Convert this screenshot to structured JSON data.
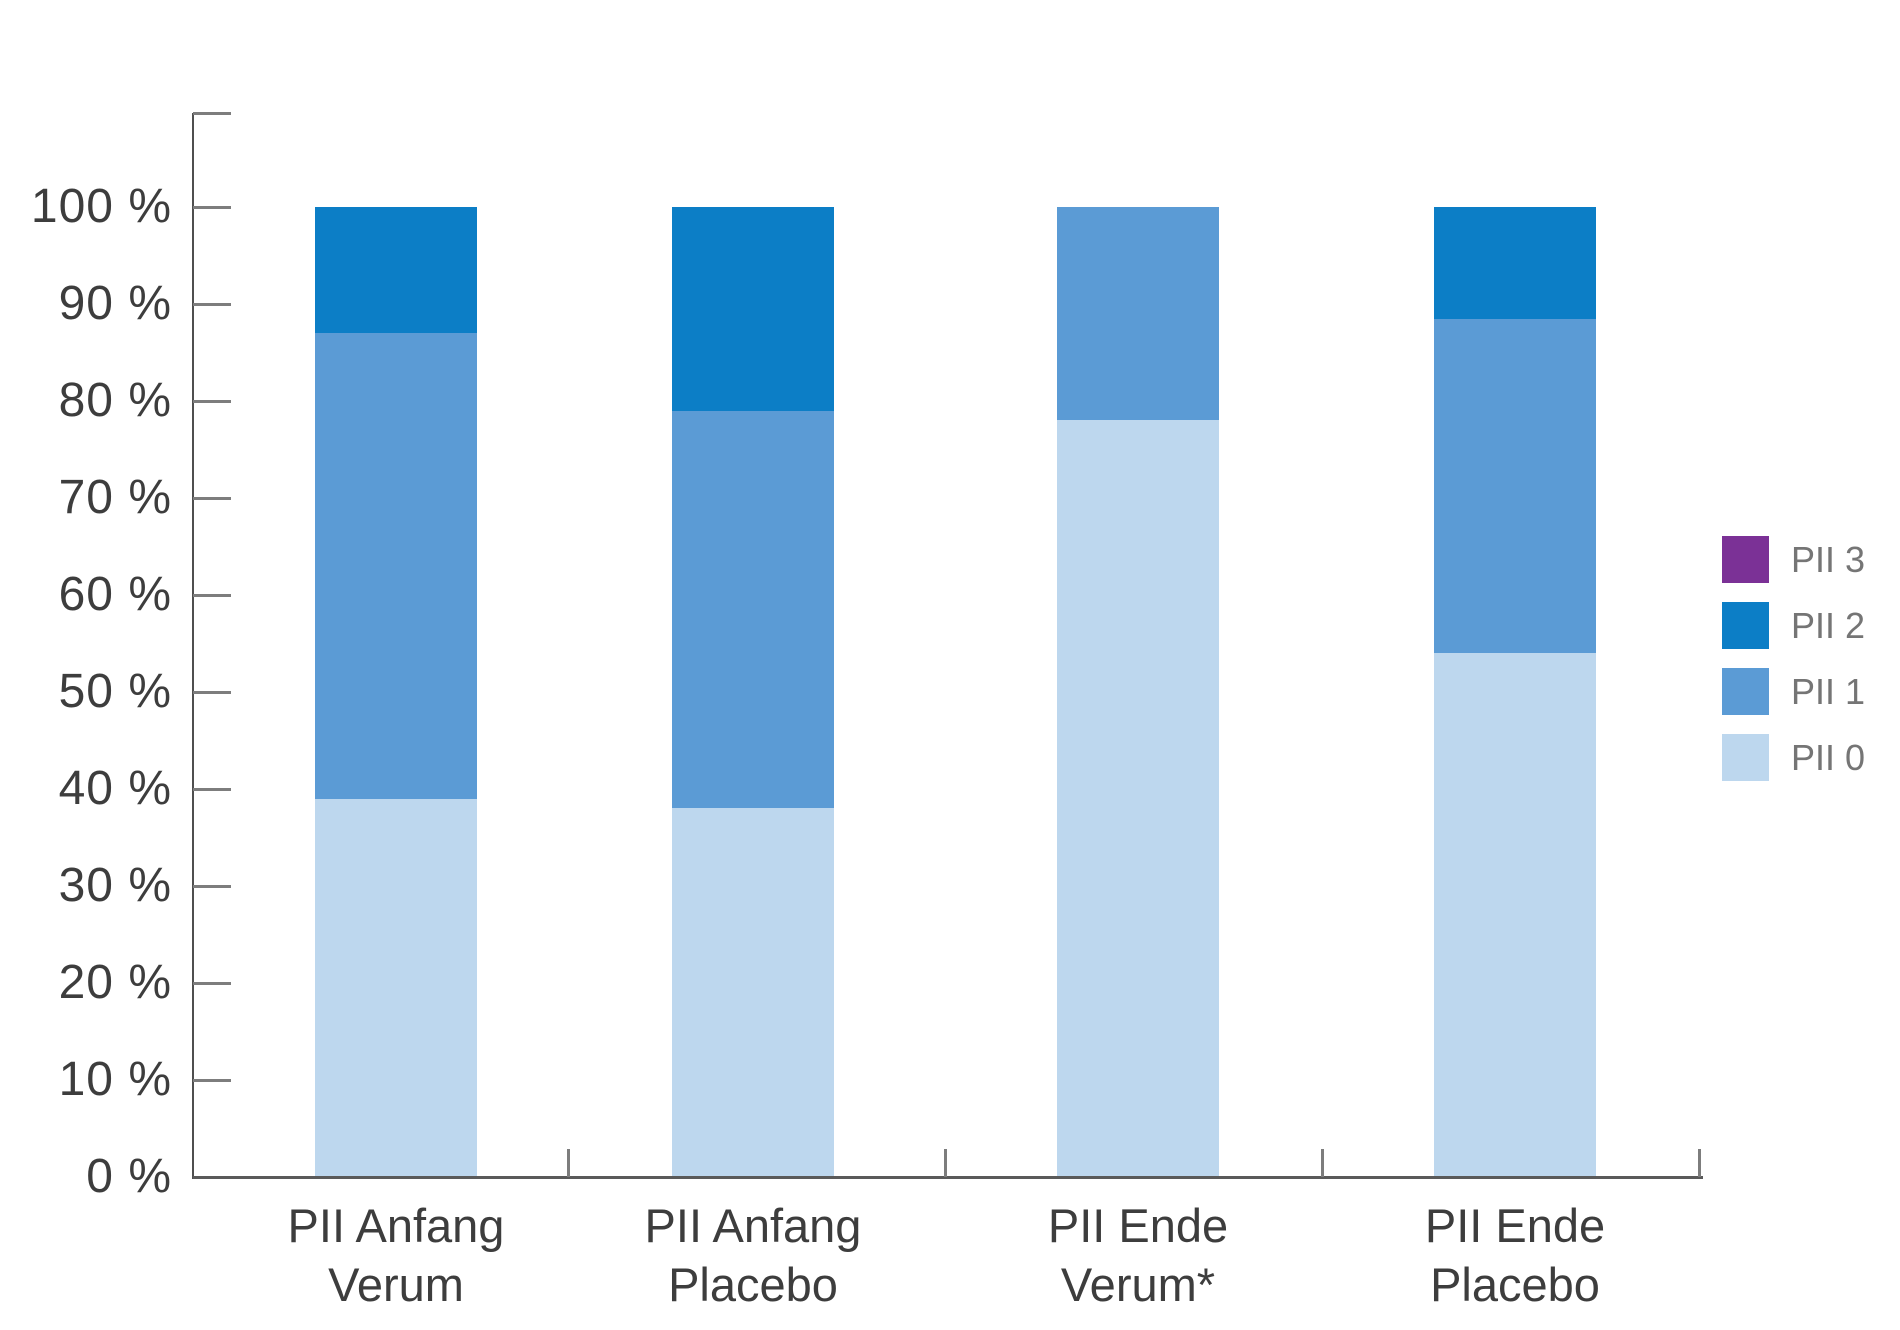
{
  "chart_data": {
    "type": "bar",
    "stacked": true,
    "orientation": "vertical",
    "title": "",
    "xlabel": "",
    "ylabel": "",
    "ylim": [
      0,
      100
    ],
    "y_tick_step": 10,
    "grid": false,
    "y_tick_labels": [
      "0 %",
      "10 %",
      "20 %",
      "30 %",
      "40 %",
      "50 %",
      "60 %",
      "70 %",
      "80 %",
      "90 %",
      "100 %"
    ],
    "categories": [
      {
        "line1": "PII Anfang",
        "line2": "Verum"
      },
      {
        "line1": "PII Anfang",
        "line2": "Placebo"
      },
      {
        "line1": "PII Ende",
        "line2": "Verum*"
      },
      {
        "line1": "PII Ende",
        "line2": "Placebo"
      }
    ],
    "series": [
      {
        "name": "PII 0",
        "color": "#BDD7EE",
        "values": [
          39,
          38,
          78,
          54
        ]
      },
      {
        "name": "PII 1",
        "color": "#5B9BD5",
        "values": [
          48,
          41,
          22,
          34.5
        ]
      },
      {
        "name": "PII 2",
        "color": "#0C7EC6",
        "values": [
          13,
          21,
          0,
          11.5
        ]
      },
      {
        "name": "PII 3",
        "color": "#7B3196",
        "values": [
          0,
          0,
          0,
          0
        ]
      }
    ],
    "legend": {
      "position": "right",
      "items": [
        {
          "label": "PII 3",
          "color": "#7B3196"
        },
        {
          "label": "PII 2",
          "color": "#0C7EC6"
        },
        {
          "label": "PII 1",
          "color": "#5B9BD5"
        },
        {
          "label": "PII 0",
          "color": "#BDD7EE"
        }
      ]
    }
  },
  "colors": {
    "axis_line": "#4F4F4F",
    "tick": "#7D7D7D",
    "baseline": "#5A5A5A",
    "label_text": "#3D3D3D",
    "legend_text": "#757575",
    "background": "#FFFFFF"
  }
}
